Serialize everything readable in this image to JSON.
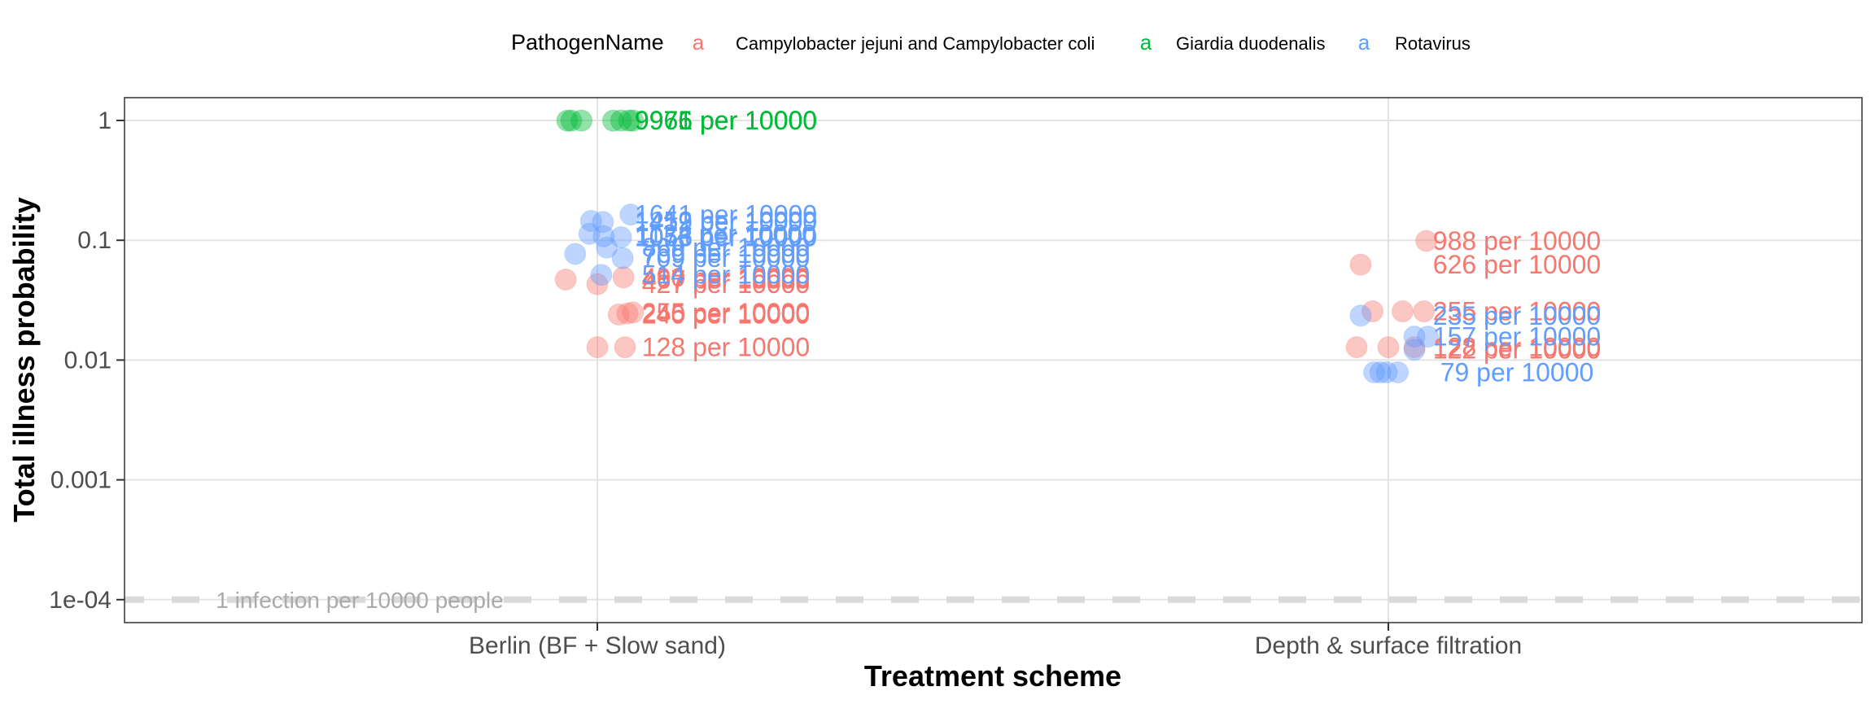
{
  "chart_data": {
    "type": "scatter",
    "y_scale": "log10",
    "ylim": [
      9e-05,
      2
    ],
    "y_ticks": [
      {
        "value": 1,
        "label": "1"
      },
      {
        "value": 0.1,
        "label": "0.1"
      },
      {
        "value": 0.01,
        "label": "0.01"
      },
      {
        "value": 0.001,
        "label": "0.001"
      },
      {
        "value": 0.0001,
        "label": "1e-04"
      }
    ],
    "categories": [
      "Berlin (BF + Slow sand)",
      "Depth & surface filtration"
    ],
    "xlabel": "Treatment scheme",
    "ylabel": "Total illness probability",
    "grid": true,
    "legend": {
      "title": "PathogenName",
      "position": "top",
      "key_glyph": "a"
    },
    "reference_line": {
      "y": 0.0001,
      "label": "1 infection per 10000 people",
      "style": "dashed",
      "color": "#d9d9d9"
    },
    "series": [
      {
        "name": "Campylobacter jejuni and Campylobacter coli",
        "color": "#F8766D",
        "points": [
          {
            "cat": 0,
            "j": -0.04,
            "y": 0.047
          },
          {
            "cat": 0,
            "j": 0.0,
            "y": 0.043
          },
          {
            "cat": 0,
            "j": 0.033,
            "y": 0.049
          },
          {
            "cat": 0,
            "j": 0.027,
            "y": 0.024
          },
          {
            "cat": 0,
            "j": 0.038,
            "y": 0.0245
          },
          {
            "cat": 0,
            "j": 0.045,
            "y": 0.025
          },
          {
            "cat": 0,
            "j": 0.0,
            "y": 0.0128
          },
          {
            "cat": 0,
            "j": 0.035,
            "y": 0.0128
          },
          {
            "cat": 1,
            "j": -0.035,
            "y": 0.0626
          },
          {
            "cat": 1,
            "j": 0.048,
            "y": 0.0988
          },
          {
            "cat": 1,
            "j": -0.02,
            "y": 0.0255
          },
          {
            "cat": 1,
            "j": 0.018,
            "y": 0.0255
          },
          {
            "cat": 1,
            "j": 0.045,
            "y": 0.0255
          },
          {
            "cat": 1,
            "j": -0.04,
            "y": 0.0128
          },
          {
            "cat": 1,
            "j": 0.0,
            "y": 0.0128
          },
          {
            "cat": 1,
            "j": 0.033,
            "y": 0.0128
          }
        ],
        "labels": [
          {
            "cat": 0,
            "y": 0.049,
            "text": "490 per 10000"
          },
          {
            "cat": 0,
            "y": 0.047,
            "text": "467 per 10000"
          },
          {
            "cat": 0,
            "y": 0.043,
            "text": "427 per 10000"
          },
          {
            "cat": 0,
            "y": 0.025,
            "text": "255 per 10000"
          },
          {
            "cat": 0,
            "y": 0.0245,
            "text": "245 per 10000"
          },
          {
            "cat": 0,
            "y": 0.024,
            "text": "240 per 10000"
          },
          {
            "cat": 0,
            "y": 0.0128,
            "text": "128 per 10000"
          },
          {
            "cat": 1,
            "y": 0.0988,
            "text": "988 per 10000"
          },
          {
            "cat": 1,
            "y": 0.0626,
            "text": "626 per 10000"
          },
          {
            "cat": 1,
            "y": 0.0255,
            "text": "255 per 10000"
          },
          {
            "cat": 1,
            "y": 0.0128,
            "text": "128 per 10000"
          },
          {
            "cat": 1,
            "y": 0.0122,
            "text": "122 per 10000"
          }
        ]
      },
      {
        "name": "Giardia duodenalis",
        "color": "#00BA38",
        "points": [
          {
            "cat": 0,
            "j": -0.038,
            "y": 0.9966
          },
          {
            "cat": 0,
            "j": -0.033,
            "y": 0.9971
          },
          {
            "cat": 0,
            "j": -0.02,
            "y": 0.9975
          },
          {
            "cat": 0,
            "j": 0.02,
            "y": 0.9969
          },
          {
            "cat": 0,
            "j": 0.03,
            "y": 0.9974
          },
          {
            "cat": 0,
            "j": 0.04,
            "y": 0.9972
          },
          {
            "cat": 0,
            "j": 0.045,
            "y": 0.9973
          }
        ],
        "labels": [
          {
            "cat": 0,
            "y": 0.9966,
            "text": "9966 per 10000"
          },
          {
            "cat": 0,
            "y": 0.9971,
            "text": "9971 per 10000"
          },
          {
            "cat": 0,
            "y": 0.9975,
            "text": "9975 per 10000"
          }
        ]
      },
      {
        "name": "Rotavirus",
        "color": "#619CFF",
        "points": [
          {
            "cat": 0,
            "j": -0.008,
            "y": 0.145
          },
          {
            "cat": 0,
            "j": 0.007,
            "y": 0.142
          },
          {
            "cat": 0,
            "j": 0.042,
            "y": 0.164
          },
          {
            "cat": 0,
            "j": -0.01,
            "y": 0.113
          },
          {
            "cat": 0,
            "j": 0.008,
            "y": 0.108
          },
          {
            "cat": 0,
            "j": 0.03,
            "y": 0.106
          },
          {
            "cat": 0,
            "j": 0.012,
            "y": 0.0869
          },
          {
            "cat": 0,
            "j": -0.028,
            "y": 0.0769
          },
          {
            "cat": 0,
            "j": 0.032,
            "y": 0.0709
          },
          {
            "cat": 0,
            "j": 0.005,
            "y": 0.0514
          },
          {
            "cat": 1,
            "j": -0.035,
            "y": 0.0235
          },
          {
            "cat": 1,
            "j": 0.033,
            "y": 0.0157
          },
          {
            "cat": 1,
            "j": 0.05,
            "y": 0.0157
          },
          {
            "cat": 1,
            "j": 0.033,
            "y": 0.0122
          },
          {
            "cat": 1,
            "j": -0.018,
            "y": 0.0079
          },
          {
            "cat": 1,
            "j": -0.01,
            "y": 0.0079
          },
          {
            "cat": 1,
            "j": -0.002,
            "y": 0.0079
          },
          {
            "cat": 1,
            "j": 0.012,
            "y": 0.0079
          }
        ],
        "labels": [
          {
            "cat": 0,
            "y": 0.164,
            "text": "1641 per 10000"
          },
          {
            "cat": 0,
            "y": 0.145,
            "text": "1452 per 10000"
          },
          {
            "cat": 0,
            "y": 0.142,
            "text": "1419 per 10000"
          },
          {
            "cat": 0,
            "y": 0.113,
            "text": "1134 per 10000"
          },
          {
            "cat": 0,
            "y": 0.108,
            "text": "1075 per 10000"
          },
          {
            "cat": 0,
            "y": 0.106,
            "text": "1058 per 10000"
          },
          {
            "cat": 0,
            "y": 0.0869,
            "text": "869 per 10000"
          },
          {
            "cat": 0,
            "y": 0.0769,
            "text": "769 per 10000"
          },
          {
            "cat": 0,
            "y": 0.0709,
            "text": "709 per 10000"
          },
          {
            "cat": 0,
            "y": 0.0514,
            "text": "514 per 10000"
          },
          {
            "cat": 1,
            "y": 0.0235,
            "text": "235 per 10000"
          },
          {
            "cat": 1,
            "y": 0.0157,
            "text": "157 per 10000"
          },
          {
            "cat": 1,
            "y": 0.0079,
            "text": "79 per 10000"
          }
        ]
      }
    ]
  }
}
